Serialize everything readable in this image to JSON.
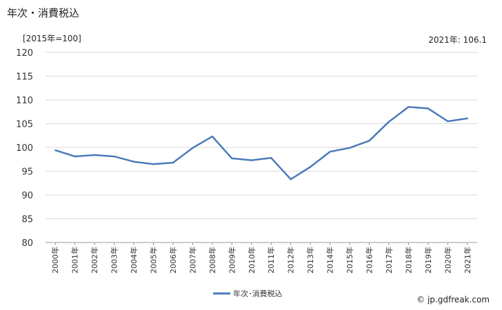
{
  "header": {
    "title": "年次・消費税込",
    "unit": "[2015年=100]",
    "latest": "2021年: 106.1"
  },
  "footer": {
    "source": "© jp.gdfreak.com"
  },
  "chart_data": {
    "type": "line",
    "categories": [
      "2000年",
      "2001年",
      "2002年",
      "2003年",
      "2004年",
      "2005年",
      "2006年",
      "2007年",
      "2008年",
      "2009年",
      "2010年",
      "2011年",
      "2012年",
      "2013年",
      "2014年",
      "2015年",
      "2016年",
      "2017年",
      "2018年",
      "2019年",
      "2020年",
      "2021年"
    ],
    "series": [
      {
        "name": "年次･消費税込",
        "color": "#4a7ab8",
        "values": [
          99.4,
          98.1,
          98.4,
          98.1,
          97.0,
          96.5,
          96.8,
          99.9,
          102.3,
          97.7,
          97.3,
          97.8,
          93.3,
          95.9,
          99.1,
          99.9,
          101.4,
          105.4,
          108.5,
          108.2,
          105.5,
          106.1
        ]
      }
    ],
    "ylim": [
      80,
      120
    ],
    "yticks": [
      80,
      85,
      90,
      95,
      100,
      105,
      110,
      115,
      120
    ],
    "grid": true,
    "legend_position": "bottom"
  }
}
